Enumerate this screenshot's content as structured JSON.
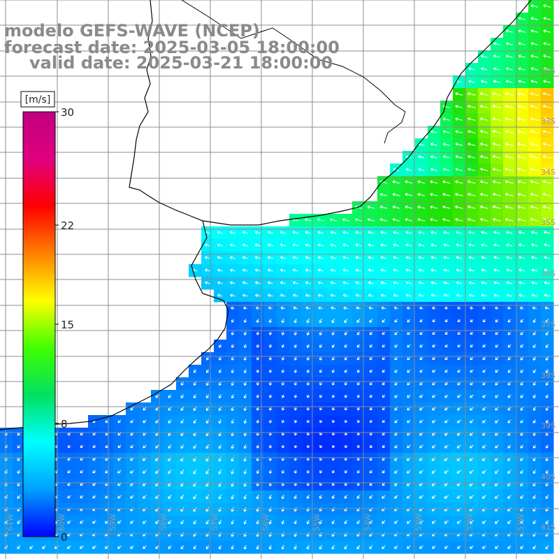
{
  "title": {
    "line1": "modelo GEFS-WAVE (NCEP)",
    "line2": "forecast date: 2025-03-05 18:00:00",
    "line3": "valid date: 2025-03-21 18:00:00"
  },
  "colorbar": {
    "unit": "[m/s]",
    "ticks": [
      "30",
      "22",
      "15",
      "8",
      "0"
    ],
    "tick_values": [
      30,
      22,
      15,
      8,
      0
    ],
    "colors": [
      "#0000ff",
      "#00a0ff",
      "#00ffff",
      "#00e060",
      "#40ff00",
      "#ffff00",
      "#ff8000",
      "#ff0000",
      "#e00080",
      "#c00080"
    ]
  },
  "lat_labels": [
    "32S",
    "33S",
    "34S",
    "35S",
    "36S",
    "37S",
    "38S",
    "39S",
    "40S",
    "41S"
  ],
  "lon_labels": [
    "61W",
    "60W",
    "59W",
    "58W",
    "57W",
    "56W",
    "55W",
    "54W",
    "53W",
    "52W",
    "51W"
  ],
  "colors": {
    "land": "#ffffff",
    "grid": "#8c8c8c",
    "coast": "#000000",
    "arrow": "#ffffff"
  }
}
